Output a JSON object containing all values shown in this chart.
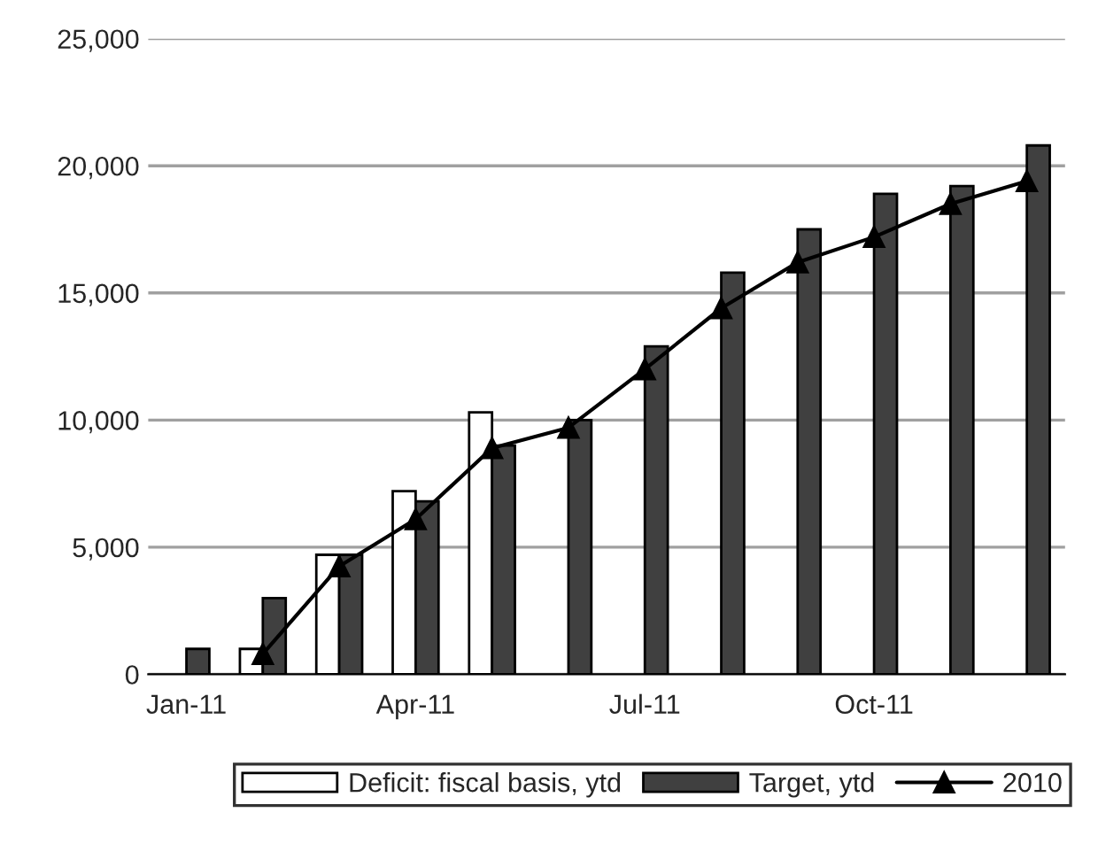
{
  "chart_data": {
    "type": "bar",
    "categories": [
      "Jan-11",
      null,
      null,
      "Apr-11",
      null,
      null,
      "Jul-11",
      null,
      null,
      "Oct-11",
      null,
      null
    ],
    "series": [
      {
        "name": "Deficit: fiscal basis, ytd",
        "color": "#ffffff",
        "values": [
          null,
          1000,
          4700,
          7200,
          10300,
          null,
          null,
          null,
          null,
          null,
          null,
          null
        ]
      },
      {
        "name": "Target, ytd",
        "color": "#404040",
        "values": [
          1000,
          3000,
          4700,
          6800,
          9000,
          10000,
          12900,
          15800,
          17500,
          18900,
          19200,
          20800
        ]
      },
      {
        "name": "2010",
        "color": "#000000",
        "type": "line",
        "marker": "triangle",
        "line_style": "solid",
        "values": [
          null,
          800,
          4250,
          6100,
          8900,
          9700,
          12000,
          14400,
          16200,
          17200,
          18500,
          19400
        ]
      }
    ],
    "ylim": [
      0,
      25000
    ],
    "yticks": [
      {
        "value": 0,
        "label": "0"
      },
      {
        "value": 5000,
        "label": "5,000"
      },
      {
        "value": 10000,
        "label": "10,000"
      },
      {
        "value": 15000,
        "label": "15,000"
      },
      {
        "value": 20000,
        "label": "20,000"
      },
      {
        "value": 25000,
        "label": "25,000"
      }
    ],
    "grid": "y",
    "legend": "bottom"
  }
}
